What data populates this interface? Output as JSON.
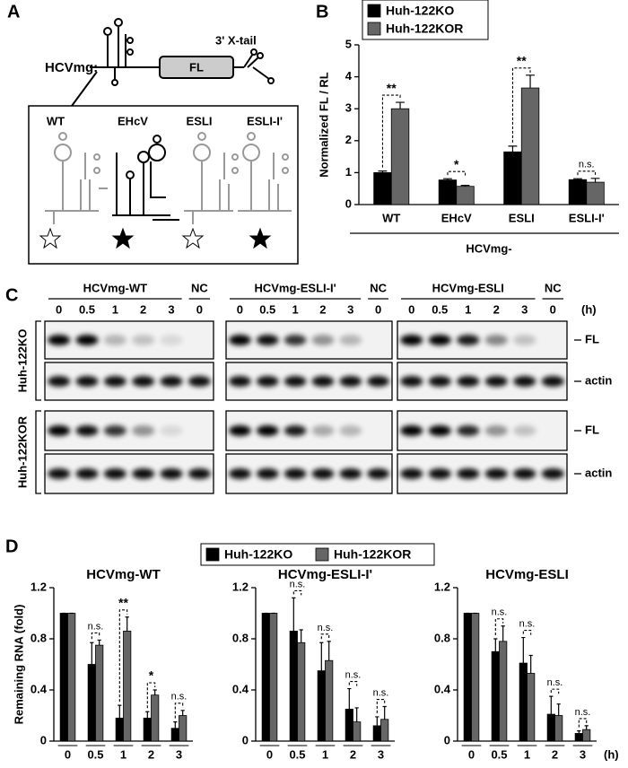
{
  "panel_labels": [
    "A",
    "B",
    "C",
    "D"
  ],
  "panel_a": {
    "construct_name": "HCVmg:",
    "gene": "FL",
    "tail": "3' X-tail",
    "variants": [
      "WT",
      "EHcV",
      "ESLI",
      "ESLI-I'"
    ]
  },
  "panel_c": {
    "groups": [
      "HCVmg-WT",
      "HCVmg-ESLI-I'",
      "HCVmg-ESLI"
    ],
    "control": "NC",
    "times": [
      "0",
      "0.5",
      "1",
      "2",
      "3"
    ],
    "control_time": "0",
    "unit": "(h)",
    "cell_lines": [
      "Huh-122KO",
      "Huh-122KOR"
    ],
    "bands": [
      "FL",
      "actin"
    ]
  },
  "chart_data": [
    {
      "type": "bar",
      "ylabel": "Normalized FL / RL",
      "xlabel": "HCVmg-",
      "legend": "upper left",
      "categories": [
        "WT",
        "EHcV",
        "ESLI",
        "ESLI-I'"
      ],
      "series": [
        {
          "name": "Huh-122KO",
          "color": "#000000",
          "values": [
            1.0,
            0.77,
            1.65,
            0.78
          ],
          "error": [
            0.05,
            0.04,
            0.18,
            0.03
          ]
        },
        {
          "name": "Huh-122KOR",
          "color": "#666666",
          "values": [
            3.0,
            0.57,
            3.65,
            0.7
          ],
          "error": [
            0.2,
            0.03,
            0.4,
            0.12
          ]
        }
      ],
      "significance": [
        "**",
        "*",
        "**",
        "n.s."
      ],
      "ylim": [
        0,
        5
      ],
      "yticks": [
        0,
        1,
        2,
        3,
        4,
        5
      ]
    },
    {
      "type": "bar",
      "title": "HCVmg-WT",
      "ylabel": "Remaining RNA (fold)",
      "legend": "top center",
      "categories": [
        "0",
        "0.5",
        "1",
        "2",
        "3"
      ],
      "series": [
        {
          "name": "Huh-122KO",
          "color": "#000000",
          "values": [
            1.0,
            0.6,
            0.18,
            0.18,
            0.1
          ],
          "error": [
            0,
            0.17,
            0.1,
            0.05,
            0.05
          ]
        },
        {
          "name": "Huh-122KOR",
          "color": "#666666",
          "values": [
            1.0,
            0.75,
            0.86,
            0.36,
            0.2
          ],
          "error": [
            0,
            0.04,
            0.11,
            0.04,
            0.04
          ]
        }
      ],
      "significance": [
        null,
        "n.s.",
        "**",
        "*",
        "n.s."
      ],
      "ylim": [
        0,
        1.2
      ],
      "yticks": [
        0,
        0.4,
        0.8,
        1.2
      ]
    },
    {
      "type": "bar",
      "title": "HCVmg-ESLI-I'",
      "categories": [
        "0",
        "0.5",
        "1",
        "2",
        "3"
      ],
      "series": [
        {
          "color": "#000000",
          "values": [
            1.0,
            0.86,
            0.55,
            0.25,
            0.12
          ],
          "error": [
            0,
            0.26,
            0.22,
            0.16,
            0.07
          ]
        },
        {
          "color": "#666666",
          "values": [
            1.0,
            0.77,
            0.63,
            0.15,
            0.17
          ],
          "error": [
            0,
            0.1,
            0.15,
            0.11,
            0.1
          ]
        }
      ],
      "significance": [
        null,
        "n.s.",
        "n.s.",
        "n.s.",
        "n.s."
      ],
      "ylim": [
        0,
        1.2
      ],
      "yticks": [
        0,
        0.4,
        0.8,
        1.2
      ]
    },
    {
      "type": "bar",
      "title": "HCVmg-ESLI",
      "x_unit": "(h)",
      "categories": [
        "0",
        "0.5",
        "1",
        "2",
        "3"
      ],
      "series": [
        {
          "color": "#000000",
          "values": [
            1.0,
            0.7,
            0.61,
            0.21,
            0.06
          ],
          "error": [
            0,
            0.1,
            0.2,
            0.14,
            0.02
          ]
        },
        {
          "color": "#666666",
          "values": [
            1.0,
            0.78,
            0.53,
            0.2,
            0.09
          ],
          "error": [
            0,
            0.12,
            0.14,
            0.09,
            0.03
          ]
        }
      ],
      "significance": [
        null,
        "n.s.",
        "n.s.",
        "n.s.",
        "n.s."
      ],
      "ylim": [
        0,
        1.2
      ],
      "yticks": [
        0,
        0.4,
        0.8,
        1.2
      ]
    }
  ]
}
